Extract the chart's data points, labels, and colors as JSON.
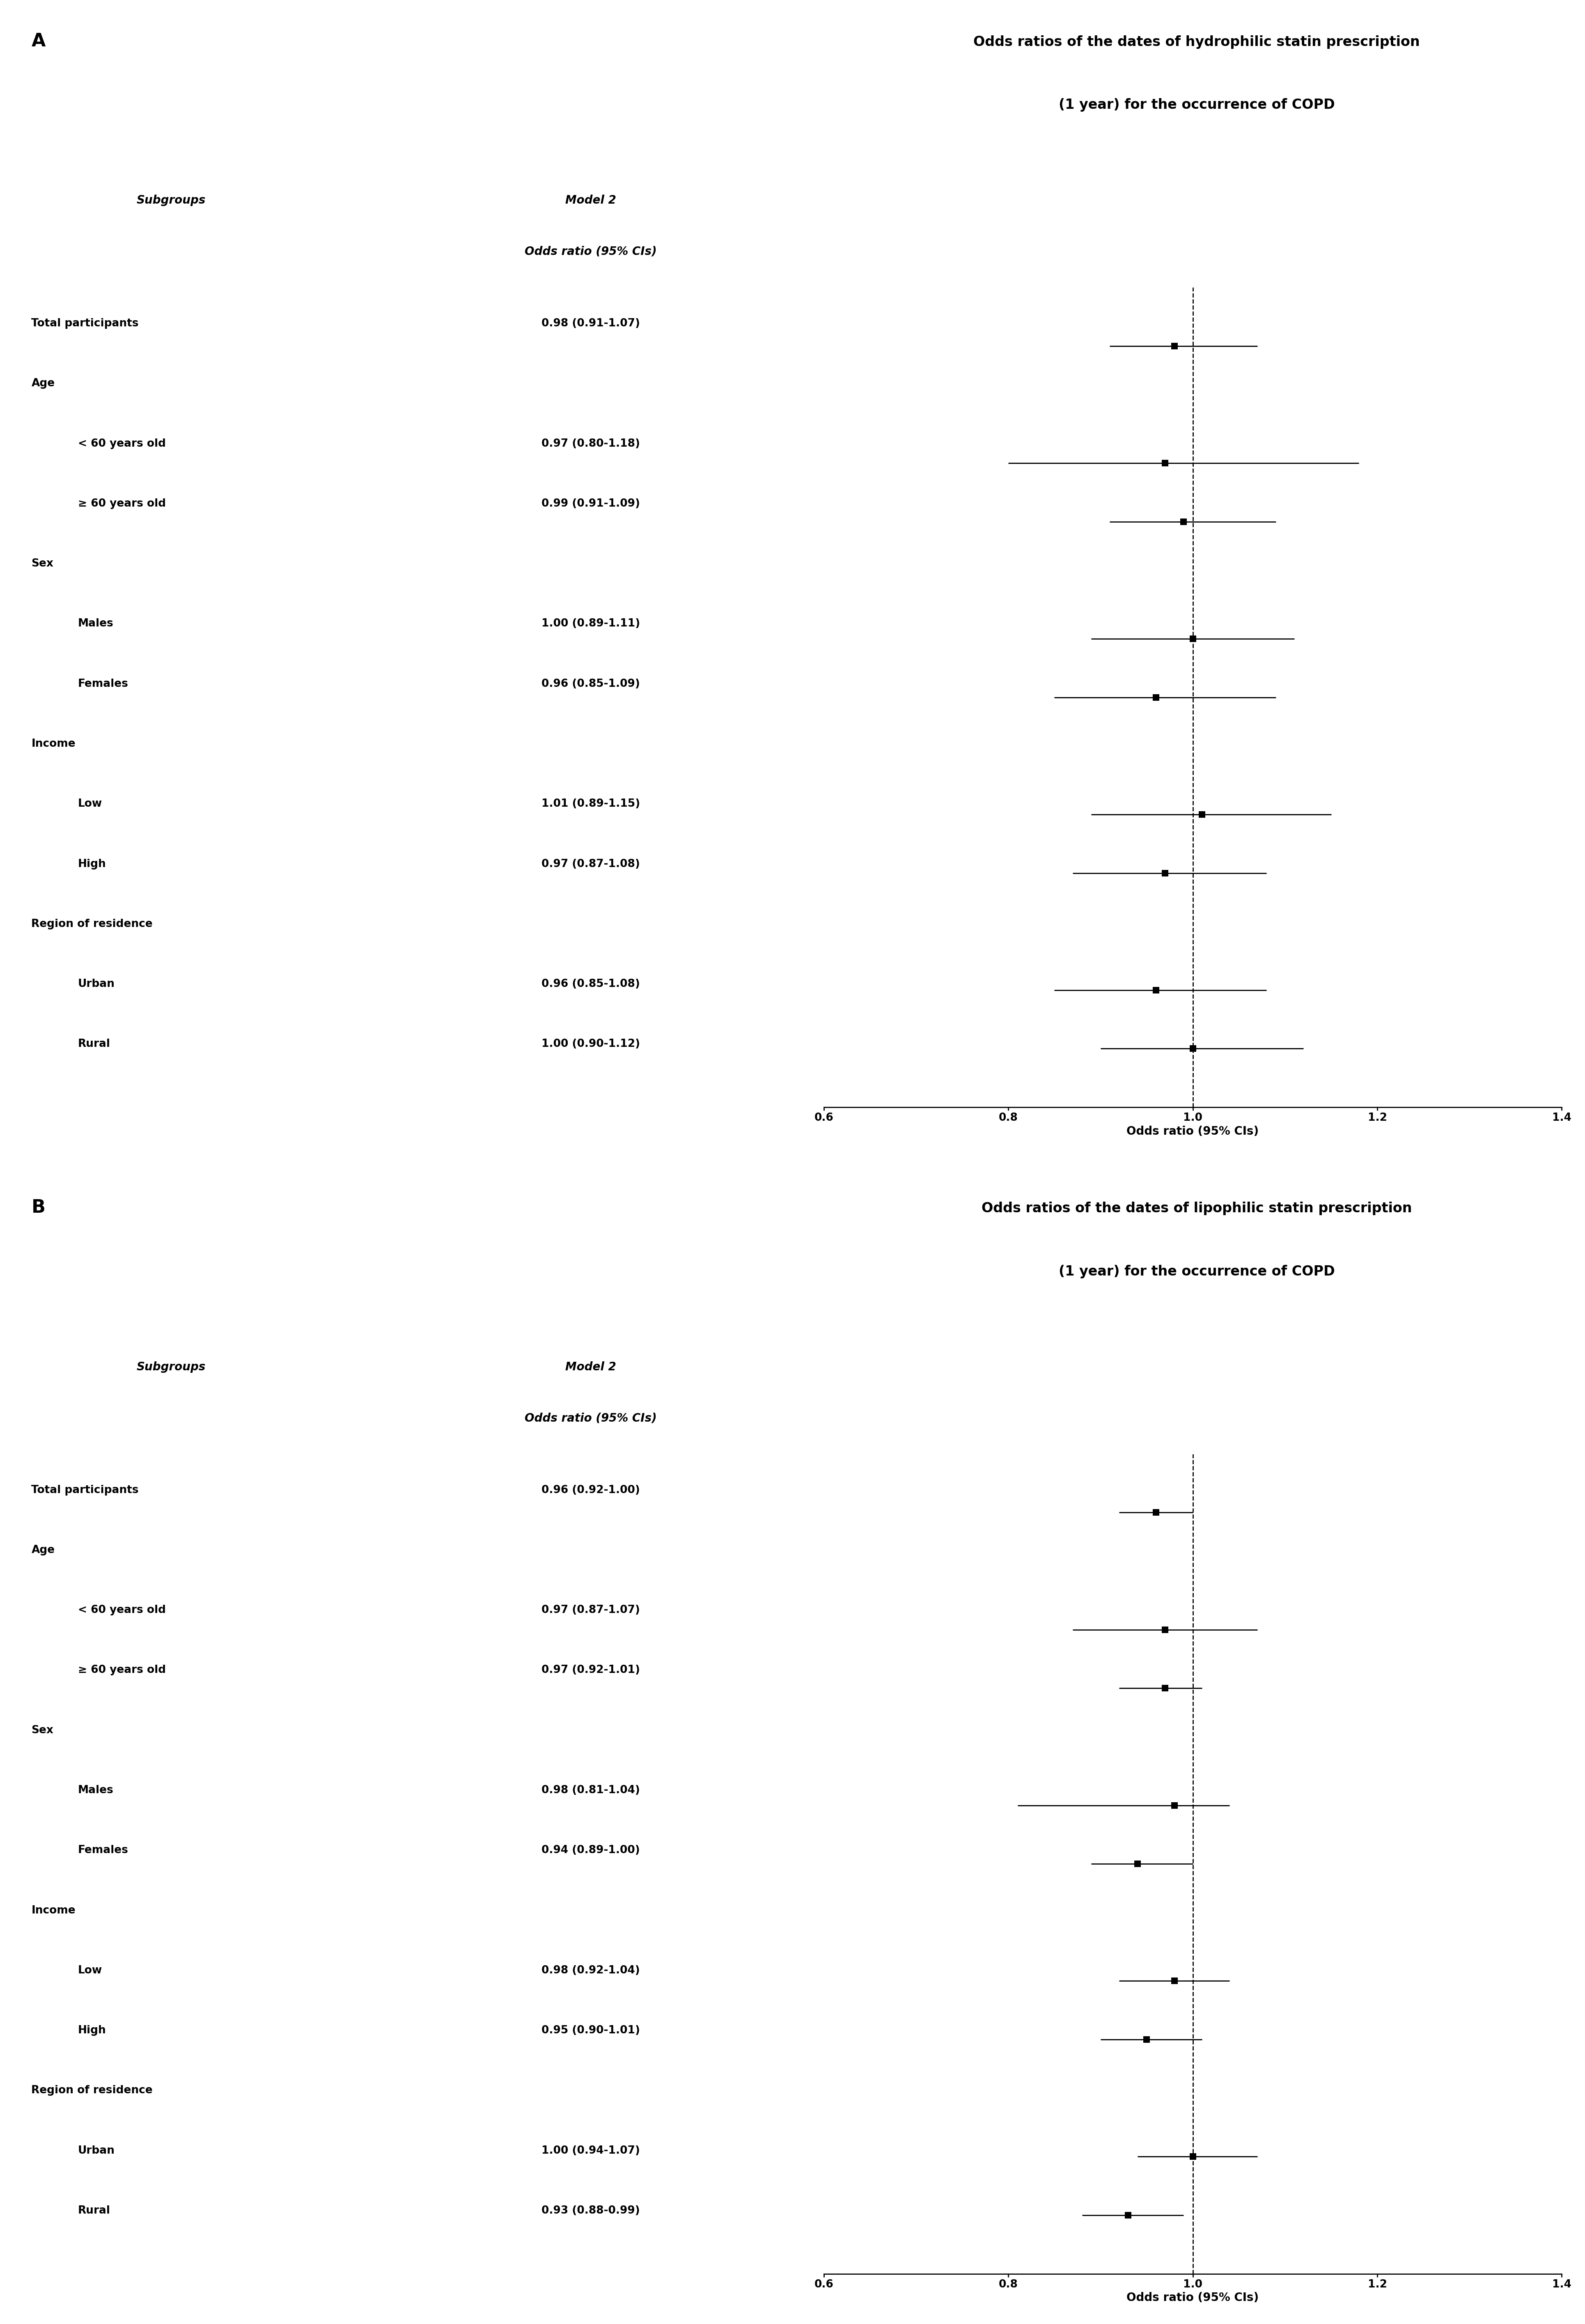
{
  "panel_A": {
    "title_line1": "Odds ratios of the dates of hydrophilic statin prescription",
    "title_line2": "(1 year) for the occurrence of COPD",
    "panel_label": "A",
    "subgroups_header": "Subgroups",
    "model_header": "Model 2",
    "or_header": "Odds ratio (95% CIs)",
    "rows": [
      {
        "label": "Total participants",
        "or": 0.98,
        "ci_low": 0.91,
        "ci_high": 1.07,
        "text": "0.98 (0.91-1.07)",
        "indent": false,
        "is_category": false
      },
      {
        "label": "Age",
        "or": null,
        "ci_low": null,
        "ci_high": null,
        "text": "",
        "indent": false,
        "is_category": true
      },
      {
        "label": "< 60 years old",
        "or": 0.97,
        "ci_low": 0.8,
        "ci_high": 1.18,
        "text": "0.97 (0.80-1.18)",
        "indent": true,
        "is_category": false
      },
      {
        "label": "≥ 60 years old",
        "or": 0.99,
        "ci_low": 0.91,
        "ci_high": 1.09,
        "text": "0.99 (0.91-1.09)",
        "indent": true,
        "is_category": false
      },
      {
        "label": "Sex",
        "or": null,
        "ci_low": null,
        "ci_high": null,
        "text": "",
        "indent": false,
        "is_category": true
      },
      {
        "label": "Males",
        "or": 1.0,
        "ci_low": 0.89,
        "ci_high": 1.11,
        "text": "1.00 (0.89-1.11)",
        "indent": true,
        "is_category": false
      },
      {
        "label": "Females",
        "or": 0.96,
        "ci_low": 0.85,
        "ci_high": 1.09,
        "text": "0.96 (0.85-1.09)",
        "indent": true,
        "is_category": false
      },
      {
        "label": "Income",
        "or": null,
        "ci_low": null,
        "ci_high": null,
        "text": "",
        "indent": false,
        "is_category": true
      },
      {
        "label": "Low",
        "or": 1.01,
        "ci_low": 0.89,
        "ci_high": 1.15,
        "text": "1.01 (0.89-1.15)",
        "indent": true,
        "is_category": false
      },
      {
        "label": "High",
        "or": 0.97,
        "ci_low": 0.87,
        "ci_high": 1.08,
        "text": "0.97 (0.87-1.08)",
        "indent": true,
        "is_category": false
      },
      {
        "label": "Region of residence",
        "or": null,
        "ci_low": null,
        "ci_high": null,
        "text": "",
        "indent": false,
        "is_category": true
      },
      {
        "label": "Urban",
        "or": 0.96,
        "ci_low": 0.85,
        "ci_high": 1.08,
        "text": "0.96 (0.85-1.08)",
        "indent": true,
        "is_category": false
      },
      {
        "label": "Rural",
        "or": 1.0,
        "ci_low": 0.9,
        "ci_high": 1.12,
        "text": "1.00 (0.90-1.12)",
        "indent": true,
        "is_category": false
      }
    ],
    "xlim": [
      0.6,
      1.4
    ],
    "xticks": [
      0.6,
      0.8,
      1.0,
      1.2,
      1.4
    ],
    "xlabel": "Odds ratio (95% CIs)"
  },
  "panel_B": {
    "title_line1": "Odds ratios of the dates of lipophilic statin prescription",
    "title_line2": "(1 year) for the occurrence of COPD",
    "panel_label": "B",
    "subgroups_header": "Subgroups",
    "model_header": "Model 2",
    "or_header": "Odds ratio (95% CIs)",
    "rows": [
      {
        "label": "Total participants",
        "or": 0.96,
        "ci_low": 0.92,
        "ci_high": 1.0,
        "text": "0.96 (0.92-1.00)",
        "indent": false,
        "is_category": false
      },
      {
        "label": "Age",
        "or": null,
        "ci_low": null,
        "ci_high": null,
        "text": "",
        "indent": false,
        "is_category": true
      },
      {
        "label": "< 60 years old",
        "or": 0.97,
        "ci_low": 0.87,
        "ci_high": 1.07,
        "text": "0.97 (0.87-1.07)",
        "indent": true,
        "is_category": false
      },
      {
        "label": "≥ 60 years old",
        "or": 0.97,
        "ci_low": 0.92,
        "ci_high": 1.01,
        "text": "0.97 (0.92-1.01)",
        "indent": true,
        "is_category": false
      },
      {
        "label": "Sex",
        "or": null,
        "ci_low": null,
        "ci_high": null,
        "text": "",
        "indent": false,
        "is_category": true
      },
      {
        "label": "Males",
        "or": 0.98,
        "ci_low": 0.81,
        "ci_high": 1.04,
        "text": "0.98 (0.81-1.04)",
        "indent": true,
        "is_category": false
      },
      {
        "label": "Females",
        "or": 0.94,
        "ci_low": 0.89,
        "ci_high": 1.0,
        "text": "0.94 (0.89-1.00)",
        "indent": true,
        "is_category": false
      },
      {
        "label": "Income",
        "or": null,
        "ci_low": null,
        "ci_high": null,
        "text": "",
        "indent": false,
        "is_category": true
      },
      {
        "label": "Low",
        "or": 0.98,
        "ci_low": 0.92,
        "ci_high": 1.04,
        "text": "0.98 (0.92-1.04)",
        "indent": true,
        "is_category": false
      },
      {
        "label": "High",
        "or": 0.95,
        "ci_low": 0.9,
        "ci_high": 1.01,
        "text": "0.95 (0.90-1.01)",
        "indent": true,
        "is_category": false
      },
      {
        "label": "Region of residence",
        "or": null,
        "ci_low": null,
        "ci_high": null,
        "text": "",
        "indent": false,
        "is_category": true
      },
      {
        "label": "Urban",
        "or": 1.0,
        "ci_low": 0.94,
        "ci_high": 1.07,
        "text": "1.00 (0.94-1.07)",
        "indent": true,
        "is_category": false
      },
      {
        "label": "Rural",
        "or": 0.93,
        "ci_low": 0.88,
        "ci_high": 0.99,
        "text": "0.93 (0.88-0.99)",
        "indent": true,
        "is_category": false
      }
    ],
    "xlim": [
      0.6,
      1.4
    ],
    "xticks": [
      0.6,
      0.8,
      1.0,
      1.2,
      1.4
    ],
    "xlabel": "Odds ratio (95% CIs)"
  },
  "figure_width": 38.62,
  "figure_height": 56.61,
  "background_color": "#ffffff",
  "text_color": "#000000",
  "marker_color": "#000000",
  "line_color": "#000000"
}
